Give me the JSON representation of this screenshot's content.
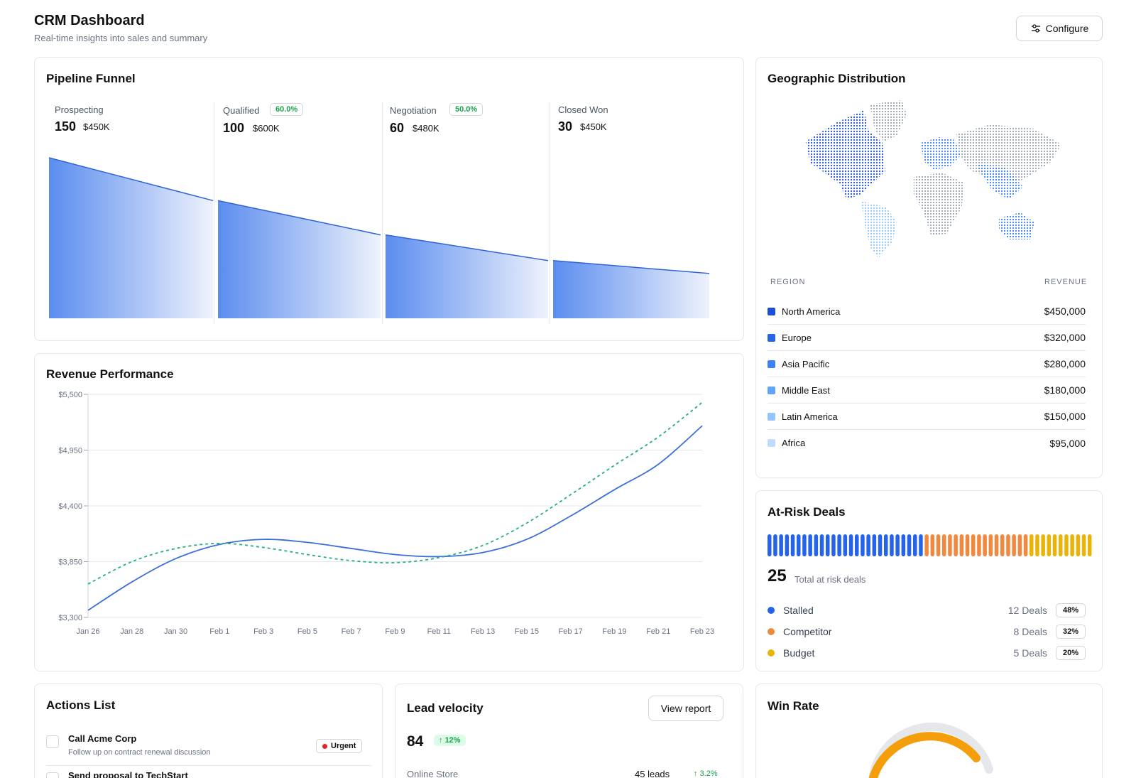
{
  "header": {
    "title": "CRM Dashboard",
    "subtitle": "Real-time insights into sales and summary",
    "configure_label": "Configure"
  },
  "pipeline": {
    "title": "Pipeline Funnel",
    "stages": [
      {
        "name": "Prospecting",
        "count": "150",
        "amount": "$450K",
        "conversion": "",
        "value": 150
      },
      {
        "name": "Qualified",
        "count": "100",
        "amount": "$600K",
        "conversion": "60.0%",
        "value": 100
      },
      {
        "name": "Negotiation",
        "count": "60",
        "amount": "$480K",
        "conversion": "50.0%",
        "value": 60
      },
      {
        "name": "Closed Won",
        "count": "30",
        "amount": "$450K",
        "conversion": "",
        "value": 30
      }
    ]
  },
  "geo": {
    "title": "Geographic Distribution",
    "col_region": "REGION",
    "col_revenue": "REVENUE",
    "regions": [
      {
        "name": "North America",
        "revenue": "$450,000",
        "color": "#1d4ed8"
      },
      {
        "name": "Europe",
        "revenue": "$320,000",
        "color": "#2563eb"
      },
      {
        "name": "Asia Pacific",
        "revenue": "$280,000",
        "color": "#3b82f6"
      },
      {
        "name": "Middle East",
        "revenue": "$180,000",
        "color": "#60a5fa"
      },
      {
        "name": "Latin America",
        "revenue": "$150,000",
        "color": "#93c5fd"
      },
      {
        "name": "Africa",
        "revenue": "$95,000",
        "color": "#bfdbfe"
      }
    ]
  },
  "revenue": {
    "title": "Revenue Performance",
    "chart_data": {
      "type": "line",
      "x": [
        "Jan 26",
        "Jan 28",
        "Jan 30",
        "Feb 1",
        "Feb 3",
        "Feb 5",
        "Feb 7",
        "Feb 9",
        "Feb 11",
        "Feb 13",
        "Feb 15",
        "Feb 17",
        "Feb 19",
        "Feb 21",
        "Feb 23"
      ],
      "yticks": [
        "$3,300",
        "$3,850",
        "$4,400",
        "$4,950",
        "$5,500"
      ],
      "ylim": [
        3300,
        5500
      ],
      "series": [
        {
          "style": "solid",
          "color": "#3b6fd8",
          "values": [
            3370,
            3650,
            3880,
            4020,
            4070,
            4040,
            3980,
            3920,
            3900,
            3940,
            4070,
            4300,
            4560,
            4810,
            5190
          ]
        },
        {
          "style": "dashed",
          "color": "#22b07d",
          "values": [
            3630,
            3850,
            3980,
            4030,
            3990,
            3920,
            3860,
            3840,
            3890,
            4010,
            4230,
            4510,
            4800,
            5080,
            5420
          ]
        }
      ]
    }
  },
  "at_risk": {
    "title": "At-Risk Deals",
    "total": "25",
    "total_label": "Total at risk deals",
    "bar_segments": [
      {
        "color": "#2563eb",
        "count": 27
      },
      {
        "color": "#f0883e",
        "count": 18
      },
      {
        "color": "#eab308",
        "count": 11
      }
    ],
    "reasons": [
      {
        "name": "Stalled",
        "deals": "12 Deals",
        "pct": "48%",
        "color": "#2563eb"
      },
      {
        "name": "Competitor",
        "deals": "8 Deals",
        "pct": "32%",
        "color": "#f0883e"
      },
      {
        "name": "Budget",
        "deals": "5 Deals",
        "pct": "20%",
        "color": "#eab308"
      }
    ]
  },
  "actions": {
    "title": "Actions List",
    "items": [
      {
        "title": "Call Acme Corp",
        "desc": "Follow up on contract renewal discussion",
        "badge": "Urgent"
      },
      {
        "title": "Send proposal to TechStart"
      }
    ]
  },
  "lead_velocity": {
    "title": "Lead velocity",
    "view_report_label": "View report",
    "value": "84",
    "change": "12%",
    "rows": [
      {
        "name": "Online Store",
        "leads": "45 leads",
        "trend": "3.2%"
      }
    ]
  },
  "win_rate": {
    "title": "Win Rate"
  }
}
